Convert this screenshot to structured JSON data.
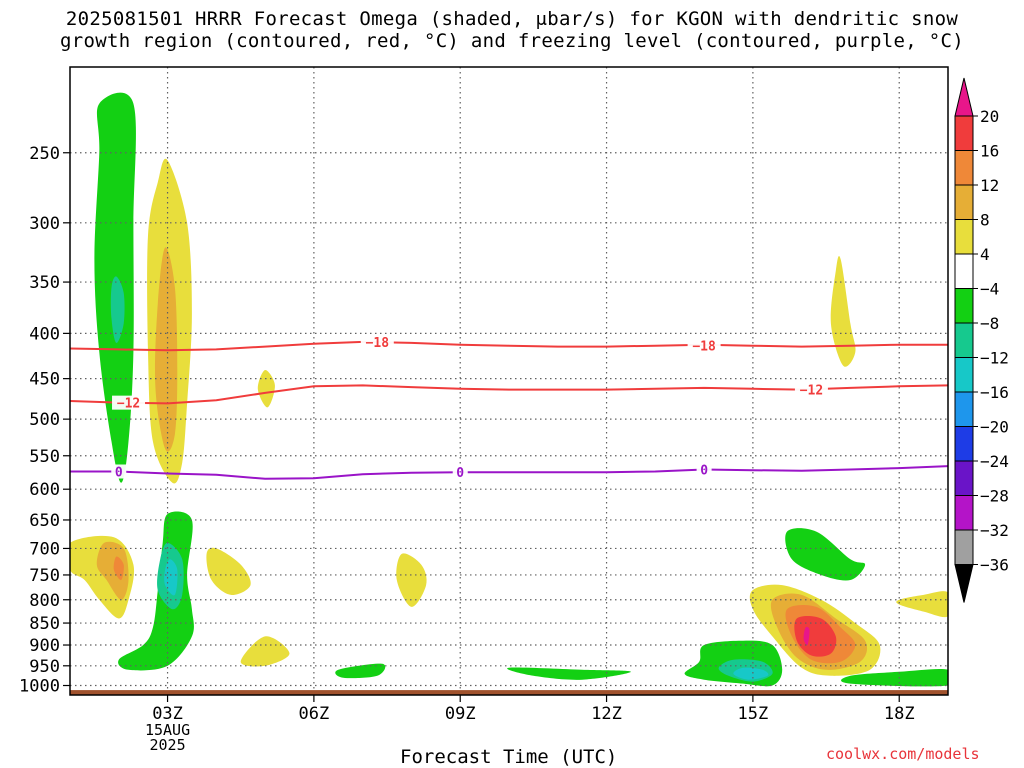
{
  "title": "2025081501 HRRR Forecast Omega (shaded, μbar/s) for KGON with dendritic snow\ngrowth region (contoured, red, °C) and freezing level (contoured, purple, °C)",
  "credit": "coolwx.com/models",
  "chart_data": {
    "type": "heatmap",
    "title": "2025081501 HRRR Forecast Omega (shaded, μbar/s) for KGON with dendritic snow growth region (contoured, red, °C) and freezing level (contoured, purple, °C)",
    "xlabel": "Forecast Time (UTC)",
    "ylabel": "",
    "x_axis": {
      "range_hours": [
        1,
        19
      ],
      "ticks": [
        {
          "hour": 3,
          "label": "03Z",
          "sublabel": "15AUG\n2025"
        },
        {
          "hour": 6,
          "label": "06Z"
        },
        {
          "hour": 9,
          "label": "09Z"
        },
        {
          "hour": 12,
          "label": "12Z"
        },
        {
          "hour": 15,
          "label": "15Z"
        },
        {
          "hour": 18,
          "label": "18Z"
        }
      ]
    },
    "y_axis": {
      "type": "pressure (hPa), log scale, inverted",
      "range": [
        1025,
        200
      ],
      "ticks": [
        250,
        300,
        350,
        400,
        450,
        500,
        550,
        600,
        650,
        700,
        750,
        800,
        850,
        900,
        950,
        1000
      ]
    },
    "grid": true,
    "colorbar": {
      "labels": [
        "20",
        "16",
        "12",
        "8",
        "4",
        "−4",
        "−8",
        "−12",
        "−16",
        "−20",
        "−24",
        "−28",
        "−32",
        "−36"
      ],
      "segments": [
        {
          "from": 20,
          "to": null,
          "color": "#e8168a"
        },
        {
          "from": 16,
          "to": 20,
          "color": "#f03c3c"
        },
        {
          "from": 12,
          "to": 16,
          "color": "#ef8838"
        },
        {
          "from": 8,
          "to": 12,
          "color": "#e6ae36"
        },
        {
          "from": 4,
          "to": 8,
          "color": "#e8de3c"
        },
        {
          "from": -4,
          "to": 4,
          "color": "#ffffff"
        },
        {
          "from": -8,
          "to": -4,
          "color": "#13d013"
        },
        {
          "from": -12,
          "to": -8,
          "color": "#16c98e"
        },
        {
          "from": -16,
          "to": -12,
          "color": "#17c8c8"
        },
        {
          "from": -20,
          "to": -16,
          "color": "#1e96ec"
        },
        {
          "from": -24,
          "to": -20,
          "color": "#1e3ce6"
        },
        {
          "from": -28,
          "to": -24,
          "color": "#6a14c8"
        },
        {
          "from": -32,
          "to": -28,
          "color": "#b414c8"
        },
        {
          "from": -36,
          "to": -32,
          "color": "#a0a0a0"
        },
        {
          "from": null,
          "to": -36,
          "color": "#000000"
        }
      ]
    },
    "contours": [
      {
        "name": "-18",
        "color": "#f03c3c",
        "points": [
          [
            1.0,
            416
          ],
          [
            2.0,
            417
          ],
          [
            3.0,
            418
          ],
          [
            4.0,
            417
          ],
          [
            5.0,
            414
          ],
          [
            6.0,
            411
          ],
          [
            7.0,
            409
          ],
          [
            8.0,
            410
          ],
          [
            9.0,
            412
          ],
          [
            10.0,
            413
          ],
          [
            11.0,
            414
          ],
          [
            12.0,
            414
          ],
          [
            13.0,
            413
          ],
          [
            14.0,
            412
          ],
          [
            15.0,
            413
          ],
          [
            16.0,
            414
          ],
          [
            17.0,
            413
          ],
          [
            18.0,
            412
          ],
          [
            19.0,
            412
          ]
        ],
        "labels": [
          [
            7.3,
            409
          ],
          [
            14.0,
            413
          ]
        ]
      },
      {
        "name": "-12",
        "color": "#f03c3c",
        "points": [
          [
            1.0,
            477
          ],
          [
            2.0,
            479
          ],
          [
            3.0,
            480
          ],
          [
            4.0,
            476
          ],
          [
            5.0,
            467
          ],
          [
            6.0,
            459
          ],
          [
            7.0,
            458
          ],
          [
            8.0,
            460
          ],
          [
            9.0,
            462
          ],
          [
            10.0,
            463
          ],
          [
            11.0,
            463
          ],
          [
            12.0,
            463
          ],
          [
            13.0,
            462
          ],
          [
            14.0,
            461
          ],
          [
            15.0,
            462
          ],
          [
            16.0,
            463
          ],
          [
            17.0,
            461
          ],
          [
            18.0,
            459
          ],
          [
            19.0,
            458
          ]
        ],
        "labels": [
          [
            2.2,
            479
          ],
          [
            16.2,
            463
          ]
        ]
      },
      {
        "name": "0",
        "color": "#9a14c8",
        "points": [
          [
            1.0,
            573
          ],
          [
            2.0,
            573
          ],
          [
            3.0,
            576
          ],
          [
            4.0,
            578
          ],
          [
            5.0,
            584
          ],
          [
            6.0,
            583
          ],
          [
            7.0,
            577
          ],
          [
            8.0,
            575
          ],
          [
            9.0,
            574
          ],
          [
            10.0,
            574
          ],
          [
            11.0,
            574
          ],
          [
            12.0,
            574
          ],
          [
            13.0,
            573
          ],
          [
            14.0,
            570
          ],
          [
            15.0,
            571
          ],
          [
            16.0,
            572
          ],
          [
            17.0,
            570
          ],
          [
            18.0,
            568
          ],
          [
            19.0,
            565
          ]
        ],
        "labels": [
          [
            2.0,
            573
          ],
          [
            9.0,
            574
          ],
          [
            14.0,
            570
          ]
        ]
      }
    ],
    "omega_regions": [
      {
        "level": -4,
        "points": [
          [
            1.6,
            220
          ],
          [
            2.3,
            220
          ],
          [
            2.3,
            300
          ],
          [
            2.3,
            420
          ],
          [
            2.2,
            530
          ],
          [
            2.05,
            590
          ],
          [
            1.85,
            530
          ],
          [
            1.6,
            420
          ],
          [
            1.5,
            330
          ],
          [
            1.6,
            250
          ]
        ]
      },
      {
        "level": -8,
        "points": [
          [
            1.95,
            345
          ],
          [
            2.1,
            360
          ],
          [
            2.1,
            390
          ],
          [
            1.95,
            410
          ],
          [
            1.85,
            385
          ],
          [
            1.85,
            355
          ]
        ]
      },
      {
        "level": 4,
        "points": [
          [
            3.0,
            255
          ],
          [
            3.4,
            300
          ],
          [
            3.5,
            380
          ],
          [
            3.4,
            480
          ],
          [
            3.3,
            560
          ],
          [
            3.1,
            590
          ],
          [
            2.7,
            530
          ],
          [
            2.6,
            420
          ],
          [
            2.6,
            310
          ],
          [
            2.8,
            270
          ]
        ]
      },
      {
        "level": 8,
        "points": [
          [
            2.95,
            320
          ],
          [
            3.15,
            355
          ],
          [
            3.2,
            440
          ],
          [
            3.15,
            520
          ],
          [
            2.95,
            540
          ],
          [
            2.75,
            460
          ],
          [
            2.8,
            370
          ]
        ]
      },
      {
        "level": 4,
        "points": [
          [
            5.0,
            440
          ],
          [
            5.2,
            458
          ],
          [
            5.05,
            485
          ],
          [
            4.85,
            462
          ]
        ]
      },
      {
        "level": 4,
        "points": [
          [
            16.8,
            330
          ],
          [
            17.0,
            390
          ],
          [
            17.1,
            420
          ],
          [
            16.85,
            435
          ],
          [
            16.6,
            390
          ],
          [
            16.7,
            340
          ]
        ]
      },
      {
        "level": 4,
        "points": [
          [
            1.0,
            690
          ],
          [
            1.9,
            680
          ],
          [
            2.3,
            730
          ],
          [
            2.2,
            800
          ],
          [
            2.0,
            840
          ],
          [
            1.6,
            800
          ],
          [
            1.3,
            760
          ],
          [
            1.0,
            740
          ]
        ]
      },
      {
        "level": 8,
        "points": [
          [
            1.7,
            690
          ],
          [
            2.1,
            700
          ],
          [
            2.2,
            760
          ],
          [
            2.05,
            800
          ],
          [
            1.75,
            760
          ],
          [
            1.55,
            730
          ]
        ]
      },
      {
        "level": 12,
        "points": [
          [
            1.95,
            715
          ],
          [
            2.1,
            730
          ],
          [
            2.05,
            760
          ],
          [
            1.9,
            740
          ]
        ]
      },
      {
        "level": -4,
        "points": [
          [
            3.0,
            640
          ],
          [
            3.5,
            650
          ],
          [
            3.4,
            750
          ],
          [
            3.5,
            820
          ],
          [
            3.5,
            880
          ],
          [
            3.0,
            950
          ],
          [
            2.2,
            960
          ],
          [
            2.0,
            935
          ],
          [
            2.5,
            900
          ],
          [
            2.7,
            860
          ],
          [
            2.8,
            780
          ],
          [
            2.9,
            690
          ]
        ]
      },
      {
        "level": -8,
        "points": [
          [
            3.0,
            690
          ],
          [
            3.3,
            720
          ],
          [
            3.3,
            790
          ],
          [
            3.1,
            820
          ],
          [
            2.8,
            780
          ],
          [
            2.85,
            720
          ]
        ]
      },
      {
        "level": -12,
        "points": [
          [
            3.05,
            720
          ],
          [
            3.2,
            740
          ],
          [
            3.15,
            790
          ],
          [
            2.95,
            770
          ],
          [
            2.95,
            740
          ]
        ]
      },
      {
        "level": 4,
        "points": [
          [
            4.0,
            700
          ],
          [
            4.5,
            730
          ],
          [
            4.7,
            770
          ],
          [
            4.3,
            790
          ],
          [
            3.9,
            760
          ],
          [
            3.8,
            710
          ]
        ]
      },
      {
        "level": 4,
        "points": [
          [
            7.8,
            710
          ],
          [
            8.2,
            730
          ],
          [
            8.3,
            770
          ],
          [
            8.0,
            815
          ],
          [
            7.7,
            760
          ]
        ]
      },
      {
        "level": 4,
        "points": [
          [
            5.0,
            880
          ],
          [
            5.5,
            920
          ],
          [
            5.0,
            950
          ],
          [
            4.5,
            940
          ]
        ]
      },
      {
        "level": -4,
        "points": [
          [
            6.5,
            960
          ],
          [
            7.4,
            945
          ],
          [
            7.3,
            975
          ],
          [
            6.6,
            980
          ]
        ]
      },
      {
        "level": -4,
        "points": [
          [
            10.0,
            955
          ],
          [
            11.5,
            960
          ],
          [
            12.5,
            965
          ],
          [
            11.5,
            985
          ],
          [
            10.5,
            975
          ]
        ]
      },
      {
        "level": -4,
        "points": [
          [
            14.0,
            900
          ],
          [
            14.8,
            890
          ],
          [
            15.4,
            900
          ],
          [
            15.6,
            960
          ],
          [
            15.4,
            1000
          ],
          [
            14.8,
            995
          ],
          [
            14.0,
            985
          ],
          [
            13.6,
            970
          ],
          [
            13.9,
            940
          ]
        ]
      },
      {
        "level": -8,
        "points": [
          [
            14.6,
            935
          ],
          [
            15.2,
            940
          ],
          [
            15.4,
            970
          ],
          [
            15.0,
            990
          ],
          [
            14.5,
            975
          ],
          [
            14.3,
            955
          ]
        ]
      },
      {
        "level": -12,
        "points": [
          [
            14.8,
            955
          ],
          [
            15.2,
            960
          ],
          [
            15.3,
            975
          ],
          [
            14.9,
            985
          ],
          [
            14.6,
            970
          ]
        ]
      },
      {
        "level": 4,
        "points": [
          [
            15.0,
            780
          ],
          [
            15.6,
            770
          ],
          [
            16.4,
            800
          ],
          [
            17.1,
            850
          ],
          [
            17.6,
            900
          ],
          [
            17.4,
            960
          ],
          [
            16.6,
            975
          ],
          [
            16.0,
            955
          ],
          [
            15.4,
            880
          ],
          [
            15.0,
            820
          ]
        ]
      },
      {
        "level": 8,
        "points": [
          [
            15.4,
            800
          ],
          [
            16.0,
            790
          ],
          [
            16.7,
            840
          ],
          [
            17.3,
            890
          ],
          [
            17.2,
            940
          ],
          [
            16.5,
            960
          ],
          [
            15.9,
            930
          ],
          [
            15.5,
            860
          ]
        ]
      },
      {
        "level": 12,
        "points": [
          [
            15.7,
            820
          ],
          [
            16.3,
            815
          ],
          [
            16.8,
            860
          ],
          [
            17.1,
            900
          ],
          [
            16.8,
            940
          ],
          [
            16.2,
            935
          ],
          [
            15.8,
            880
          ]
        ]
      },
      {
        "level": 16,
        "points": [
          [
            15.9,
            840
          ],
          [
            16.4,
            840
          ],
          [
            16.7,
            880
          ],
          [
            16.6,
            920
          ],
          [
            16.2,
            925
          ],
          [
            15.9,
            890
          ]
        ]
      },
      {
        "level": 20,
        "points": [
          [
            16.08,
            860
          ],
          [
            16.16,
            865
          ],
          [
            16.12,
            900
          ],
          [
            16.04,
            885
          ]
        ]
      },
      {
        "level": -4,
        "points": [
          [
            15.7,
            670
          ],
          [
            16.3,
            670
          ],
          [
            17.0,
            720
          ],
          [
            17.3,
            730
          ],
          [
            17.0,
            760
          ],
          [
            16.4,
            750
          ],
          [
            15.8,
            720
          ]
        ]
      },
      {
        "level": 4,
        "points": [
          [
            18.0,
            800
          ],
          [
            18.5,
            790
          ],
          [
            19.0,
            785
          ],
          [
            19.0,
            835
          ],
          [
            18.5,
            825
          ],
          [
            18.0,
            810
          ]
        ]
      },
      {
        "level": -4,
        "points": [
          [
            17.0,
            975
          ],
          [
            18.0,
            965
          ],
          [
            19.0,
            960
          ],
          [
            19.0,
            1000
          ],
          [
            17.0,
            995
          ]
        ]
      }
    ],
    "terrain": {
      "surface_pressure_hPa": 1012,
      "color": "#a0522d"
    }
  }
}
